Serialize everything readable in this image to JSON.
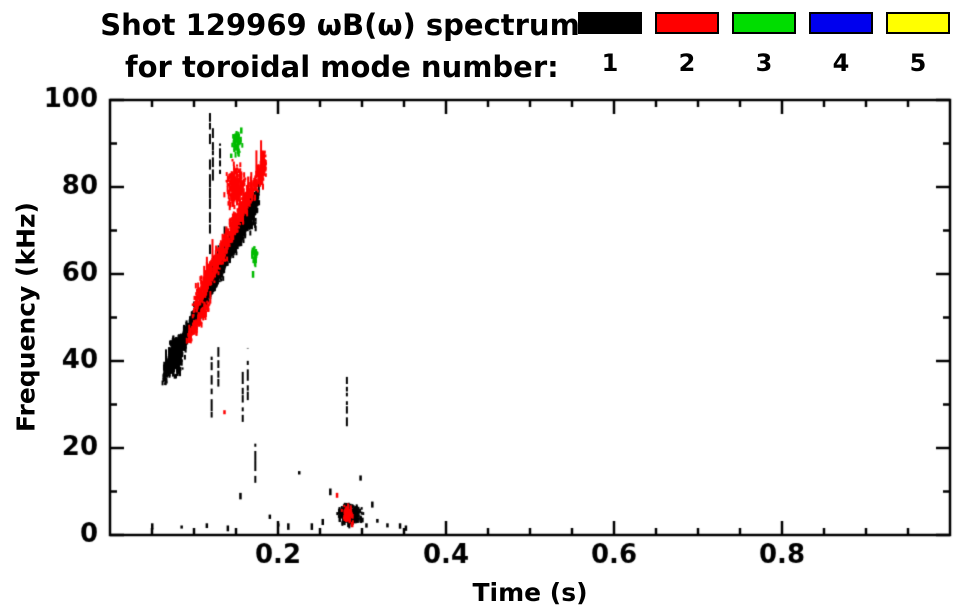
{
  "chart_data": {
    "type": "scatter",
    "title": "Shot 129969 ωB(ω) spectrum",
    "subtitle": "for toroidal mode number:",
    "xlabel": "Time (s)",
    "ylabel": "Frequency (kHz)",
    "xlim": [
      0,
      1.0
    ],
    "ylim": [
      0,
      100
    ],
    "xticks": [
      0.2,
      0.4,
      0.6,
      0.8
    ],
    "yticks": [
      0,
      20,
      40,
      60,
      80,
      100
    ],
    "x_minor_step": 0.05,
    "y_minor_step": 10,
    "grid": false,
    "legend_position": "top-right",
    "legend": [
      {
        "label": "1",
        "color": "#000000"
      },
      {
        "label": "2",
        "color": "#ff0000"
      },
      {
        "label": "3",
        "color": "#00dd00"
      },
      {
        "label": "4",
        "color": "#0000ee"
      },
      {
        "label": "5",
        "color": "#ffff00"
      }
    ],
    "series": [
      {
        "mode": 1,
        "color": "#000000",
        "shape": "band",
        "t": [
          0.065,
          0.175
        ],
        "f": [
          36,
          77
        ],
        "jf": 3.2,
        "jt": 0.003,
        "n": 1500,
        "streak_p": 0.04
      },
      {
        "mode": 1,
        "color": "#000000",
        "shape": "band",
        "t": [
          0.115,
          0.172
        ],
        "f": [
          57,
          74
        ],
        "jf": 4.5,
        "jt": 0.003,
        "n": 700,
        "streak_p": 0.08
      },
      {
        "mode": 1,
        "color": "#000000",
        "shape": "blob",
        "tc": 0.078,
        "fc": 41,
        "rt": 0.01,
        "rf": 4.5,
        "n": 320
      },
      {
        "mode": 1,
        "color": "#000000",
        "shape": "vstreak",
        "t": 0.119,
        "f": [
          62,
          97
        ]
      },
      {
        "mode": 1,
        "color": "#000000",
        "shape": "vstreak",
        "t": 0.1225,
        "f": [
          78,
          94
        ]
      },
      {
        "mode": 1,
        "color": "#000000",
        "shape": "vstreak",
        "t": 0.131,
        "f": [
          83,
          90
        ]
      },
      {
        "mode": 1,
        "color": "#000000",
        "shape": "vstreak",
        "t": 0.121,
        "f": [
          27,
          41
        ]
      },
      {
        "mode": 1,
        "color": "#000000",
        "shape": "vstreak",
        "t": 0.129,
        "f": [
          30,
          45
        ]
      },
      {
        "mode": 1,
        "color": "#000000",
        "shape": "vstreak",
        "t": 0.158,
        "f": [
          26,
          39
        ]
      },
      {
        "mode": 1,
        "color": "#000000",
        "shape": "vstreak",
        "t": 0.164,
        "f": [
          31,
          43
        ]
      },
      {
        "mode": 1,
        "color": "#000000",
        "shape": "vstreak",
        "t": 0.173,
        "f": [
          12,
          21
        ]
      },
      {
        "mode": 1,
        "color": "#000000",
        "shape": "vstreak",
        "t": 0.282,
        "f": [
          25,
          38
        ]
      },
      {
        "mode": 1,
        "color": "#000000",
        "shape": "blob",
        "tc": 0.285,
        "fc": 4.5,
        "rt": 0.016,
        "rf": 2.8,
        "n": 240
      },
      {
        "mode": 1,
        "color": "#000000",
        "shape": "points",
        "pts": [
          [
            0.05,
            2
          ],
          [
            0.085,
            1.5
          ],
          [
            0.115,
            2
          ],
          [
            0.14,
            1.5
          ],
          [
            0.155,
            9
          ],
          [
            0.19,
            4
          ],
          [
            0.2,
            2
          ],
          [
            0.212,
            2
          ],
          [
            0.225,
            14
          ],
          [
            0.24,
            2
          ],
          [
            0.253,
            3
          ],
          [
            0.262,
            10
          ],
          [
            0.298,
            13
          ],
          [
            0.305,
            2
          ],
          [
            0.312,
            7
          ],
          [
            0.318,
            3
          ],
          [
            0.33,
            2
          ],
          [
            0.345,
            2
          ],
          [
            0.352,
            1.5
          ]
        ]
      },
      {
        "mode": 2,
        "color": "#ff0000",
        "shape": "band",
        "t": [
          0.1,
          0.185
        ],
        "f": [
          52,
          85
        ],
        "jf": 4.2,
        "jt": 0.003,
        "n": 850,
        "streak_p": 0.05
      },
      {
        "mode": 2,
        "color": "#ff0000",
        "shape": "band",
        "t": [
          0.092,
          0.118
        ],
        "f": [
          44,
          53
        ],
        "jf": 2.5,
        "jt": 0.002,
        "n": 140,
        "streak_p": 0.02
      },
      {
        "mode": 2,
        "color": "#ff0000",
        "shape": "blob",
        "tc": 0.15,
        "fc": 80,
        "rt": 0.014,
        "rf": 5,
        "n": 280
      },
      {
        "mode": 2,
        "color": "#ff0000",
        "shape": "blob",
        "tc": 0.283,
        "fc": 5,
        "rt": 0.006,
        "rf": 2.5,
        "n": 70
      },
      {
        "mode": 2,
        "color": "#ff0000",
        "shape": "points",
        "pts": [
          [
            0.27,
            9
          ],
          [
            0.288,
            2
          ],
          [
            0.136,
            28
          ]
        ]
      },
      {
        "mode": 3,
        "color": "#00bb00",
        "shape": "blob",
        "tc": 0.15,
        "fc": 90,
        "rt": 0.006,
        "rf": 3.5,
        "n": 70
      },
      {
        "mode": 3,
        "color": "#00bb00",
        "shape": "blob",
        "tc": 0.172,
        "fc": 64,
        "rt": 0.0035,
        "rf": 2.5,
        "n": 40
      },
      {
        "mode": 3,
        "color": "#00bb00",
        "shape": "points",
        "pts": [
          [
            0.144,
            87
          ],
          [
            0.156,
            93
          ],
          [
            0.17,
            60
          ]
        ]
      }
    ]
  }
}
